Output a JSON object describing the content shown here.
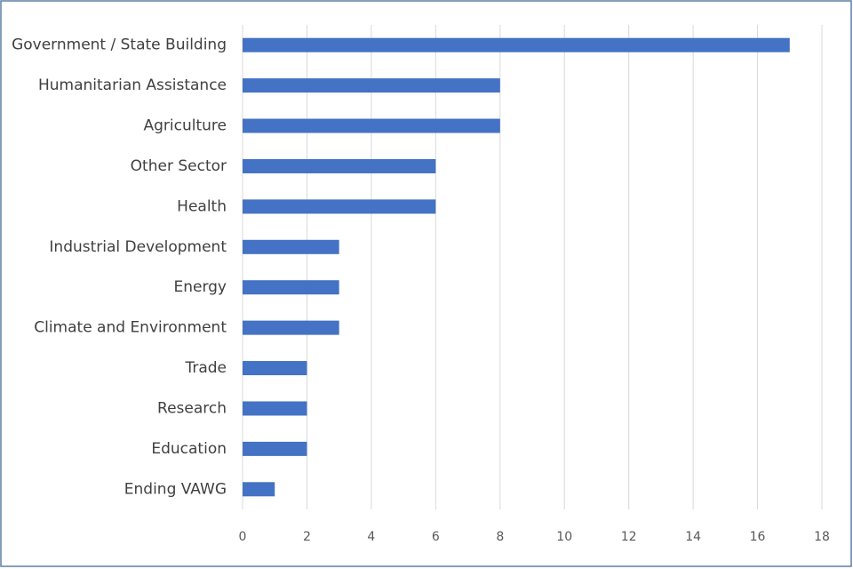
{
  "chart_data": {
    "type": "bar",
    "orientation": "horizontal",
    "categories": [
      "Government / State Building",
      "Humanitarian Assistance",
      "Agriculture",
      "Other Sector",
      "Health",
      "Industrial Development",
      "Energy",
      "Climate and Environment",
      "Trade",
      "Research",
      "Education",
      "Ending VAWG"
    ],
    "values": [
      17,
      8,
      8,
      6,
      6,
      3,
      3,
      3,
      2,
      2,
      2,
      1
    ],
    "color": "#4472c4",
    "xlim": [
      0,
      18
    ],
    "xticks": [
      0,
      2,
      4,
      6,
      8,
      10,
      12,
      14,
      16,
      18
    ],
    "grid": true
  }
}
